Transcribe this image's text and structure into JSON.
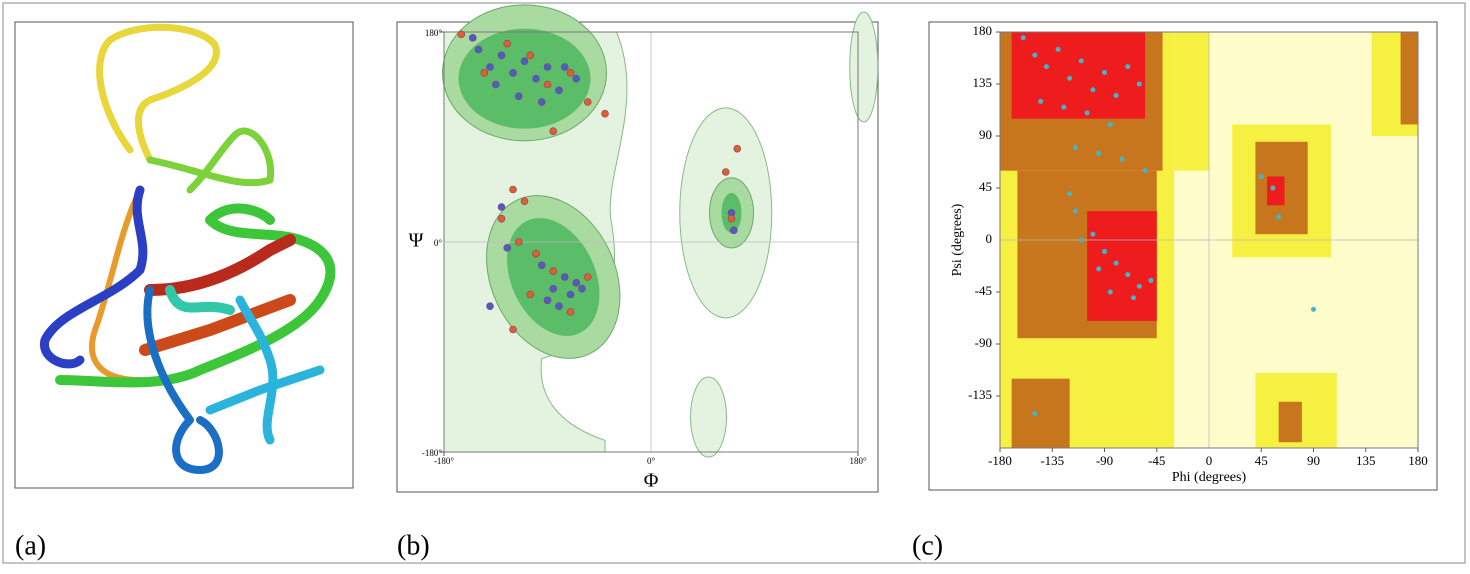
{
  "figure_labels": [
    "(a)",
    "(b)",
    "(c)"
  ],
  "chart_data": [
    {
      "type": "scatter",
      "xlabel": "Φ",
      "ylabel": "Ψ",
      "xlim": [
        -180,
        180
      ],
      "ylim": [
        -180,
        180
      ],
      "xticks": [
        {
          "value": -180,
          "label": "-180°"
        },
        {
          "value": 0,
          "label": "0°"
        },
        {
          "value": 180,
          "label": "180°"
        }
      ],
      "yticks": [
        {
          "value": -180,
          "label": "-180°"
        },
        {
          "value": 0,
          "label": "0°"
        },
        {
          "value": 180,
          "label": "180°"
        }
      ],
      "grid": true,
      "series": [
        {
          "color": "#4a5fc1",
          "x": [
            -150,
            -140,
            -130,
            -120,
            -110,
            -100,
            -90,
            -135,
            -75,
            -80,
            -115,
            -95,
            -65,
            -155,
            -85,
            -75,
            -70,
            -65,
            -95,
            -90,
            -60,
            -80,
            -130,
            -125,
            -140,
            70,
            72
          ],
          "y": [
            165,
            150,
            160,
            145,
            155,
            140,
            150,
            135,
            150,
            130,
            125,
            120,
            140,
            175,
            -40,
            -30,
            -45,
            -35,
            -20,
            -50,
            -40,
            -55,
            30,
            -5,
            -55,
            25,
            10
          ]
        },
        {
          "color": "#e0602a",
          "x": [
            -165,
            -145,
            -125,
            -105,
            -90,
            -70,
            -55,
            -40,
            -85,
            -120,
            -110,
            -130,
            -115,
            -100,
            -85,
            -70,
            -55,
            -105,
            -120,
            65,
            75,
            70
          ],
          "y": [
            178,
            145,
            170,
            160,
            135,
            145,
            120,
            110,
            95,
            45,
            35,
            20,
            0,
            -10,
            -25,
            -60,
            -30,
            -45,
            -75,
            60,
            80,
            20
          ]
        }
      ]
    },
    {
      "type": "scatter",
      "xlabel": "Phi (degrees)",
      "ylabel": "Psi (degrees)",
      "xlim": [
        -180,
        180
      ],
      "ylim": [
        -180,
        180
      ],
      "xticks": [
        -180,
        -135,
        -90,
        -45,
        0,
        45,
        90,
        135,
        180
      ],
      "yticks": [
        -135,
        -90,
        -45,
        0,
        45,
        90,
        135,
        180
      ],
      "grid": true,
      "series": [
        {
          "color": "#3fb6d0",
          "x": [
            -160,
            -150,
            -140,
            -130,
            -120,
            -110,
            -100,
            -90,
            -80,
            -70,
            -60,
            -145,
            -125,
            -105,
            -85,
            -115,
            -95,
            -75,
            -55,
            -100,
            -90,
            -80,
            -70,
            -60,
            -50,
            -110,
            -95,
            -85,
            -65,
            -120,
            -115,
            55,
            60,
            45,
            90,
            -150
          ],
          "y": [
            175,
            160,
            150,
            165,
            140,
            155,
            130,
            145,
            125,
            150,
            135,
            120,
            115,
            110,
            100,
            80,
            75,
            70,
            60,
            5,
            -10,
            -20,
            -30,
            -40,
            -35,
            0,
            -25,
            -45,
            -50,
            40,
            25,
            45,
            20,
            55,
            -60,
            -150
          ]
        }
      ]
    }
  ]
}
